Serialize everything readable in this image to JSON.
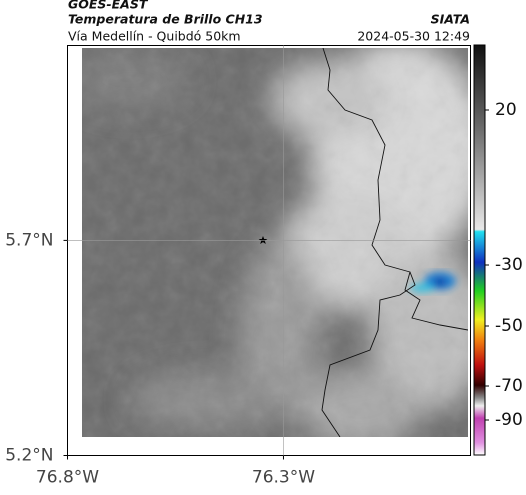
{
  "header": {
    "agency": "GOES-EAST",
    "product": "Temperatura de Brillo CH13",
    "location": "Vía Medellín - Quibdó 50km",
    "source": "SIATA",
    "timestamp": "2024-05-30 12:49"
  },
  "map": {
    "lon_lim": [
      -76.8,
      -75.867
    ],
    "lat_lim": [
      5.2,
      6.153
    ],
    "lon_ticks": [
      {
        "value": -76.8,
        "label": "76.8°W"
      },
      {
        "value": -76.3,
        "label": "76.3°W"
      }
    ],
    "lat_ticks": [
      {
        "value": 5.2,
        "label": "5.2°N"
      },
      {
        "value": 5.7,
        "label": "5.7°N"
      }
    ]
  },
  "colorbar": {
    "ticks": [
      20,
      -30,
      -50,
      -70,
      -90
    ]
  }
}
